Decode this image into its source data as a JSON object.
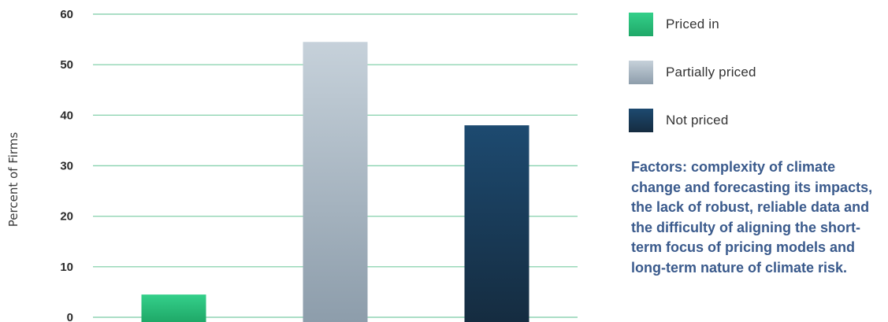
{
  "chart_data": {
    "type": "bar",
    "categories": [
      "Priced in",
      "Partially priced",
      "Not priced"
    ],
    "values": [
      4.5,
      54.5,
      38
    ],
    "colors": [
      "#2bbd7a",
      "#b2bfca",
      "#183b5a"
    ],
    "ylabel": "Percent of Firms",
    "xlabel": "",
    "ylim": [
      0,
      60
    ],
    "yticks": [
      "0",
      "10",
      "20",
      "30",
      "40",
      "50",
      "60"
    ],
    "grid": true,
    "legend_position": "right"
  },
  "legend": [
    {
      "label": "Priced in",
      "color": "#2bbd7a"
    },
    {
      "label": "Partially priced",
      "color": "#b2bfca"
    },
    {
      "label": "Not priced",
      "color": "#183b5a"
    }
  ],
  "note": "Factors: complexity of climate change and forecasting its impacts, the lack of robust, reliable data and the difficulty of aligning the short-term focus of pricing models and long-term nature of climate risk."
}
